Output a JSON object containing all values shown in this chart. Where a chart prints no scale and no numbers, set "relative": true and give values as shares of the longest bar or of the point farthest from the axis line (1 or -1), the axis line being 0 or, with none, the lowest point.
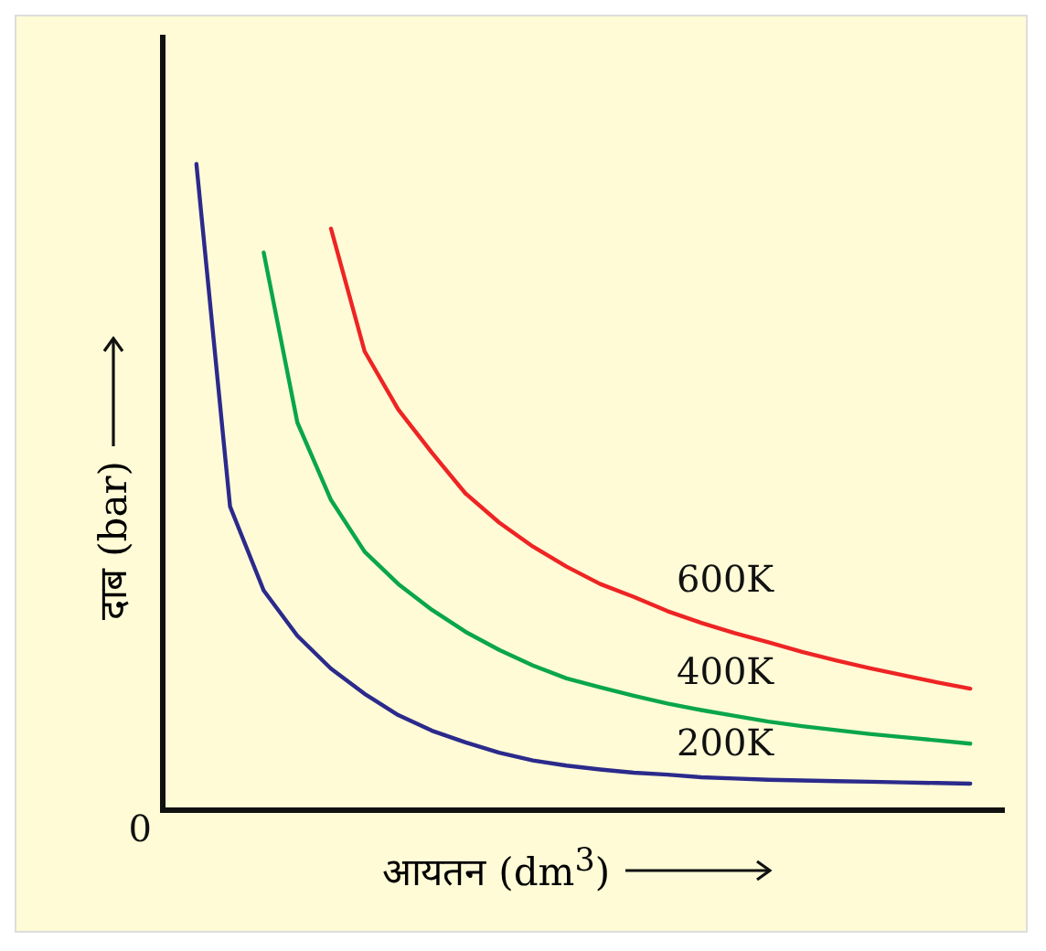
{
  "chart_data": {
    "type": "line",
    "xlabel": "आयतन (dm$^{3}$)",
    "ylabel": "दाब (bar)",
    "relative": true,
    "grid": false,
    "legend": false,
    "marker": "none",
    "line_style": "solid",
    "annotations": [
      "0"
    ],
    "categories": [
      null,
      null,
      null,
      null,
      null,
      null,
      null,
      null,
      null,
      null,
      null,
      null,
      null,
      null,
      null,
      null,
      null,
      null,
      null,
      null,
      null,
      null,
      null,
      null,
      null,
      null
    ],
    "series": [
      {
        "name": "200K",
        "color": "#2b2a8c",
        "values": [
          null,
          1.0,
          0.47,
          0.34,
          0.27,
          0.219,
          0.18,
          0.147,
          0.123,
          0.105,
          0.089,
          0.077,
          0.069,
          0.063,
          0.058,
          0.055,
          0.051,
          0.049,
          0.047,
          0.046,
          0.045,
          0.044,
          0.043,
          0.042,
          0.041,
          null
        ]
      },
      {
        "name": "400K",
        "color": "#0aa64a",
        "values": [
          null,
          null,
          null,
          0.863,
          0.6,
          0.48,
          0.4,
          0.35,
          0.31,
          0.276,
          0.248,
          0.224,
          0.204,
          0.19,
          0.177,
          0.165,
          0.155,
          0.146,
          0.137,
          0.13,
          0.124,
          0.118,
          0.113,
          0.108,
          0.103,
          null
        ]
      },
      {
        "name": "600K",
        "color": "#ee2424",
        "values": [
          null,
          null,
          null,
          null,
          null,
          0.9,
          0.71,
          0.62,
          0.553,
          0.49,
          0.445,
          0.408,
          0.377,
          0.35,
          0.33,
          0.308,
          0.29,
          0.274,
          0.26,
          0.245,
          0.232,
          0.22,
          0.209,
          0.198,
          0.188,
          null
        ]
      }
    ]
  }
}
